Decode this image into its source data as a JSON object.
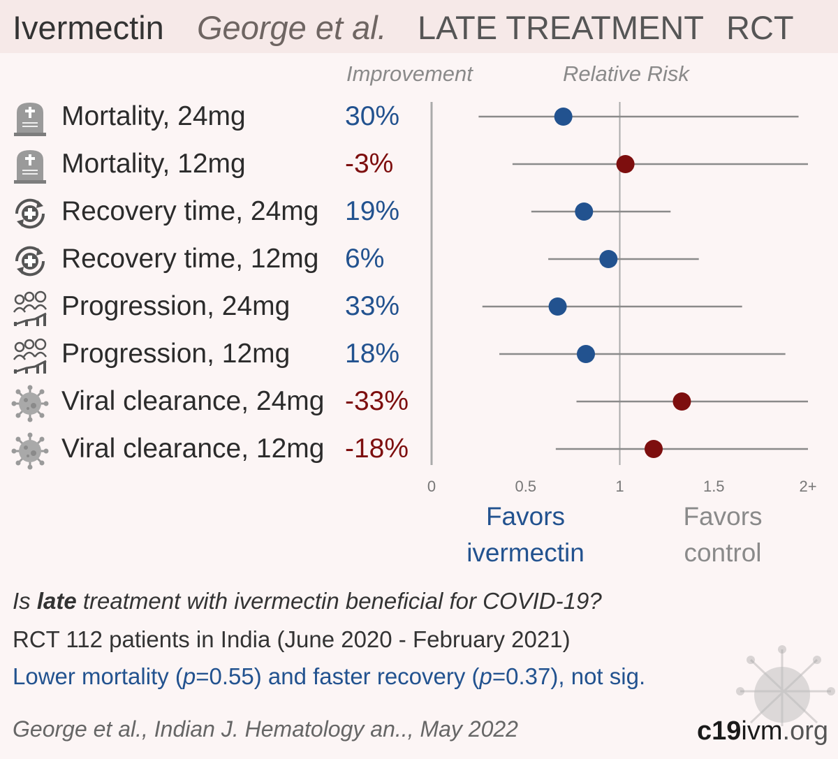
{
  "header": {
    "drug": "Ivermectin",
    "author": "George et al.",
    "stage": "LATE TREATMENT",
    "design": "RCT"
  },
  "columns": {
    "improvement": "Improvement",
    "relative_risk": "Relative Risk"
  },
  "rows": [
    {
      "label": "Mortality, 24mg",
      "improvement": "30%",
      "icon": "tombstone-icon"
    },
    {
      "label": "Mortality, 12mg",
      "improvement": "-3%",
      "icon": "tombstone-icon"
    },
    {
      "label": "Recovery time, 24mg",
      "improvement": "19%",
      "icon": "recovery-cross-icon"
    },
    {
      "label": "Recovery time, 12mg",
      "improvement": "6%",
      "icon": "recovery-cross-icon"
    },
    {
      "label": "Progression, 24mg",
      "improvement": "33%",
      "icon": "progression-people-icon"
    },
    {
      "label": "Progression, 12mg",
      "improvement": "18%",
      "icon": "progression-people-icon"
    },
    {
      "label": "Viral clearance, 24mg",
      "improvement": "-33%",
      "icon": "virus-icon"
    },
    {
      "label": "Viral clearance, 12mg",
      "improvement": "-18%",
      "icon": "virus-icon"
    }
  ],
  "colors": {
    "favorable": "#22528f",
    "unfavorable": "#7d0e0e",
    "ci_line": "#8a8a8a",
    "axis": "#aaaaaa"
  },
  "chart_data": {
    "type": "forest",
    "categories": [
      "Mortality, 24mg",
      "Mortality, 12mg",
      "Recovery time, 24mg",
      "Recovery time, 12mg",
      "Progression, 24mg",
      "Progression, 12mg",
      "Viral clearance, 24mg",
      "Viral clearance, 12mg"
    ],
    "series": [
      {
        "relative_risk": [
          0.7,
          1.03,
          0.81,
          0.94,
          0.67,
          0.82,
          1.33,
          1.18
        ],
        "ci_low": [
          0.25,
          0.43,
          0.53,
          0.62,
          0.27,
          0.36,
          0.77,
          0.66
        ],
        "ci_high": [
          1.95,
          2.0,
          1.27,
          1.42,
          1.65,
          1.88,
          2.0,
          2.0
        ]
      }
    ],
    "xlim": [
      0,
      2
    ],
    "x_ticks": [
      "0",
      "0.5",
      "1",
      "1.5",
      "2+"
    ],
    "x_tick_values": [
      0,
      0.5,
      1,
      1.5,
      2
    ],
    "reference_line": 1,
    "favors_left": "Favors ivermectin",
    "favors_left_lines": [
      "Favors",
      "ivermectin"
    ],
    "favors_right": "Favors control",
    "favors_right_lines": [
      "Favors",
      "control"
    ]
  },
  "summary": {
    "question_pre": "Is ",
    "question_bold": "late",
    "question_post": " treatment with ivermectin beneficial for COVID-19?",
    "design": "RCT 112 patients in India (June 2020 - February 2021)",
    "result_1": "Lower mortality (",
    "result_p1_label": "p",
    "result_2": "=0.55) and faster recovery (",
    "result_p2_label": "p",
    "result_3": "=0.37), not sig."
  },
  "citation": "George et al., Indian J. Hematology an.., May 2022",
  "logo": {
    "bold": "c19",
    "mid": "ivm",
    "lite": ".org"
  }
}
